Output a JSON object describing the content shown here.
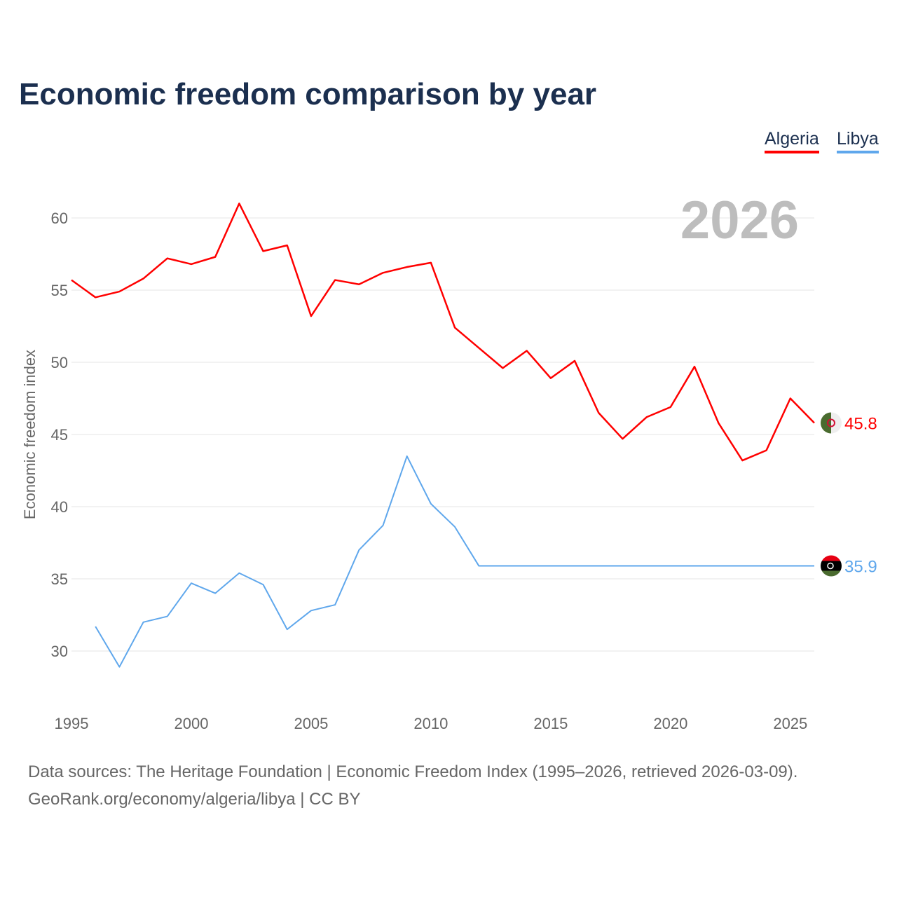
{
  "title": "Economic freedom comparison by year",
  "year_watermark": "2026",
  "footer": {
    "line1": "Data sources: The Heritage Foundation | Economic Freedom Index (1995–2026, retrieved 2026-03-09).",
    "line2": "GeoRank.org/economy/algeria/libya | CC BY"
  },
  "chart_data": {
    "type": "line",
    "title": "Economic freedom comparison by year",
    "xlabel": "",
    "ylabel": "Economic freedom index",
    "xlim": [
      1995,
      2026
    ],
    "ylim": [
      26,
      63
    ],
    "xticks": [
      1995,
      2000,
      2005,
      2010,
      2015,
      2020,
      2025
    ],
    "yticks": [
      30,
      35,
      40,
      45,
      50,
      55,
      60
    ],
    "grid": true,
    "legend_position": "top-right",
    "series": [
      {
        "name": "Algeria",
        "color": "#ff0000",
        "end_label": "45.8",
        "flag": "algeria-flag",
        "x": [
          1995,
          1996,
          1997,
          1998,
          1999,
          2000,
          2001,
          2002,
          2003,
          2004,
          2005,
          2006,
          2007,
          2008,
          2009,
          2010,
          2011,
          2012,
          2013,
          2014,
          2015,
          2016,
          2017,
          2018,
          2019,
          2020,
          2021,
          2022,
          2023,
          2024,
          2025,
          2026
        ],
        "y": [
          55.7,
          54.5,
          54.9,
          55.8,
          57.2,
          56.8,
          57.3,
          61.0,
          57.7,
          58.1,
          53.2,
          55.7,
          55.4,
          56.2,
          56.6,
          56.9,
          52.4,
          51.0,
          49.6,
          50.8,
          48.9,
          50.1,
          46.5,
          44.7,
          46.2,
          46.9,
          49.7,
          45.8,
          43.2,
          43.9,
          47.5,
          45.8
        ]
      },
      {
        "name": "Libya",
        "color": "#5fa7ec",
        "end_label": "35.9",
        "flag": "libya-flag",
        "x": [
          1996,
          1997,
          1998,
          1999,
          2000,
          2001,
          2002,
          2003,
          2004,
          2005,
          2006,
          2007,
          2008,
          2009,
          2010,
          2011,
          2012,
          2013,
          2014,
          2015,
          2016,
          2017,
          2018,
          2019,
          2020,
          2021,
          2022,
          2023,
          2024,
          2025,
          2026
        ],
        "y": [
          31.7,
          28.9,
          32.0,
          32.4,
          34.7,
          34.0,
          35.4,
          34.6,
          31.5,
          32.8,
          33.2,
          37.0,
          38.7,
          43.5,
          40.2,
          38.6,
          35.9,
          35.9,
          35.9,
          35.9,
          35.9,
          35.9,
          35.9,
          35.9,
          35.9,
          35.9,
          35.9,
          35.9,
          35.9,
          35.9,
          35.9
        ]
      }
    ]
  }
}
